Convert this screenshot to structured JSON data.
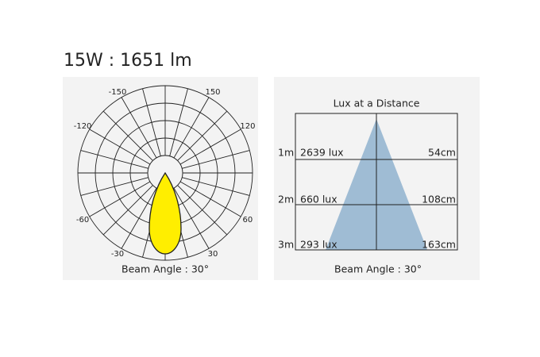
{
  "header": {
    "title": "15W : 1651 lm"
  },
  "polar": {
    "angle_labels": [
      -150,
      150,
      -120,
      120,
      -60,
      60,
      -30,
      30
    ],
    "caption": "Beam Angle : 30°"
  },
  "lux": {
    "title": "Lux at a Distance",
    "rows": [
      {
        "distance": "1m",
        "lux": "2639 lux",
        "diameter": "54cm"
      },
      {
        "distance": "2m",
        "lux": "660 lux",
        "diameter": "108cm"
      },
      {
        "distance": "3m",
        "lux": "293 lux",
        "diameter": "163cm"
      }
    ],
    "caption": "Beam Angle : 30°"
  }
}
